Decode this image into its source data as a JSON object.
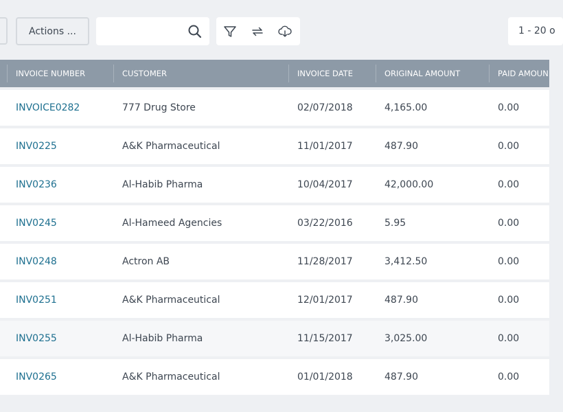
{
  "toolbar": {
    "actions_label": "Actions ...",
    "search_placeholder": "",
    "pager_text": "1 - 20 o"
  },
  "icons": {
    "search": "search-icon",
    "filter": "filter-icon",
    "refresh": "sync-icon",
    "download": "download-cloud-icon"
  },
  "table": {
    "columns": [
      "INVOICE NUMBER",
      "CUSTOMER",
      "INVOICE DATE",
      "ORIGINAL AMOUNT",
      "PAID AMOUN"
    ],
    "rows": [
      {
        "invoice": "INVOICE0282",
        "customer": "777 Drug Store",
        "date": "02/07/2018",
        "original": "4,165.00",
        "paid": "0.00"
      },
      {
        "invoice": "INV0225",
        "customer": "A&K Pharmaceutical",
        "date": "11/01/2017",
        "original": "487.90",
        "paid": "0.00"
      },
      {
        "invoice": "INV0236",
        "customer": "Al-Habib Pharma",
        "date": "10/04/2017",
        "original": "42,000.00",
        "paid": "0.00"
      },
      {
        "invoice": "INV0245",
        "customer": "Al-Hameed Agencies",
        "date": "03/22/2016",
        "original": "5.95",
        "paid": "0.00"
      },
      {
        "invoice": "INV0248",
        "customer": "Actron AB",
        "date": "11/28/2017",
        "original": "3,412.50",
        "paid": "0.00"
      },
      {
        "invoice": "INV0251",
        "customer": "A&K Pharmaceutical",
        "date": "12/01/2017",
        "original": "487.90",
        "paid": "0.00"
      },
      {
        "invoice": "INV0255",
        "customer": "Al-Habib Pharma",
        "date": "11/15/2017",
        "original": "3,025.00",
        "paid": "0.00"
      },
      {
        "invoice": "INV0265",
        "customer": "A&K Pharmaceutical",
        "date": "01/01/2018",
        "original": "487.90",
        "paid": "0.00"
      }
    ]
  },
  "colors": {
    "header_bg": "#8d9aa7",
    "link": "#1d6f8f",
    "page_bg": "#eef0f3"
  }
}
